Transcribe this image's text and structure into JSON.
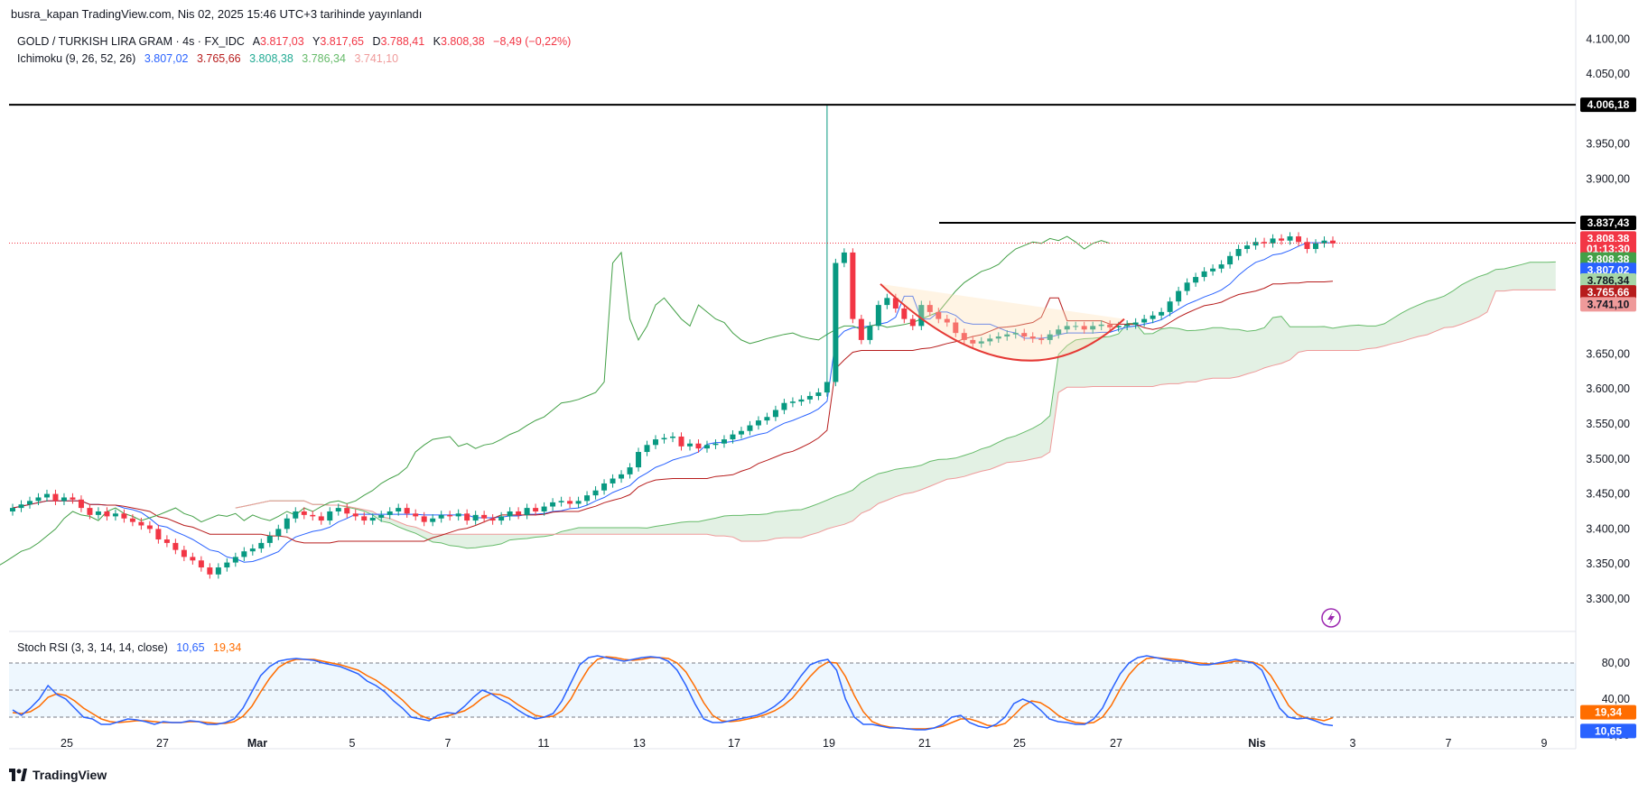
{
  "header": {
    "publish_info": "busra_kapan TradingView.com, Nis 02, 2025 15:46 UTC+3 tarihinde yayınlandı"
  },
  "legend": {
    "symbol": "GOLD / TURKISH LIRA GRAM · 4s · FX_IDC",
    "ohlc": {
      "open_label": "A",
      "open": "3.817,03",
      "high_label": "Y",
      "high": "3.817,65",
      "low_label": "D",
      "low": "3.788,41",
      "close_label": "K",
      "close": "3.808,38",
      "change": "−8,49 (−0,22%)"
    },
    "ichimoku_label": "Ichimoku (9, 26, 52, 26)",
    "ichimoku_values": [
      "3.807,02",
      "3.765,66",
      "3.808,38",
      "3.786,34",
      "3.741,10"
    ],
    "stoch_label": "Stoch RSI (3, 3, 14, 14, close)",
    "stoch_values": [
      "10,65",
      "19,34"
    ]
  },
  "price_axis": {
    "ticks": [
      "4.100,00",
      "4.050,00",
      "3.950,00",
      "3.900,00",
      "3.650,00",
      "3.600,00",
      "3.550,00",
      "3.500,00",
      "3.450,00",
      "3.400,00",
      "3.350,00",
      "3.300,00"
    ],
    "badges": [
      {
        "label": "4.006,18",
        "value": 4006.18,
        "bg": "#000000",
        "fg": "#ffffff"
      },
      {
        "label": "3.837,43",
        "value": 3837.43,
        "bg": "#000000",
        "fg": "#ffffff"
      },
      {
        "label": "3.808,38",
        "value": 3815,
        "bg": "#f23645",
        "fg": "#ffffff"
      },
      {
        "label": "01:13:30",
        "value": 3800,
        "bg": "#f23645",
        "fg": "#ffffff"
      },
      {
        "label": "3.808,38",
        "value": 3785,
        "bg": "#43a047",
        "fg": "#ffffff"
      },
      {
        "label": "3.807,02",
        "value": 3770,
        "bg": "#2962ff",
        "fg": "#ffffff"
      },
      {
        "label": "3.786,34",
        "value": 3755,
        "bg": "#a5d6a7",
        "fg": "#131722"
      },
      {
        "label": "3.765,66",
        "value": 3738,
        "bg": "#b71c1c",
        "fg": "#ffffff"
      },
      {
        "label": "3.741,10",
        "value": 3721,
        "bg": "#ef9a9a",
        "fg": "#131722"
      }
    ]
  },
  "osc_axis": {
    "ticks": [
      "80,00",
      "40,00",
      "0,00"
    ],
    "badges": [
      {
        "label": "19,34",
        "value": 19.34,
        "bg": "#ff6d00",
        "fg": "#ffffff"
      },
      {
        "label": "10,65",
        "value": 10.65,
        "bg": "#2962ff",
        "fg": "#ffffff"
      }
    ]
  },
  "time_axis": {
    "ticks": [
      "25",
      "27",
      "Mar",
      "5",
      "7",
      "11",
      "13",
      "17",
      "19",
      "21",
      "25",
      "27",
      "Nis",
      "3",
      "7",
      "9"
    ]
  },
  "footer": {
    "brand": "TradingView"
  },
  "chart_data": {
    "type": "candlestick",
    "symbol": "GOLD / TURKISH LIRA GRAM",
    "interval": "4s",
    "x_range": [
      "Feb 24, 2025",
      "Apr 9, 2025"
    ],
    "ylim": [
      3260,
      4130
    ],
    "closes": [
      3430,
      3435,
      3440,
      3445,
      3450,
      3440,
      3445,
      3442,
      3430,
      3420,
      3425,
      3418,
      3422,
      3415,
      3410,
      3405,
      3400,
      3385,
      3380,
      3370,
      3360,
      3355,
      3345,
      3335,
      3345,
      3352,
      3360,
      3368,
      3372,
      3380,
      3390,
      3400,
      3415,
      3425,
      3420,
      3418,
      3412,
      3425,
      3430,
      3422,
      3418,
      3412,
      3416,
      3420,
      3425,
      3430,
      3422,
      3418,
      3410,
      3415,
      3420,
      3418,
      3422,
      3412,
      3420,
      3415,
      3412,
      3418,
      3425,
      3420,
      3430,
      3425,
      3432,
      3438,
      3440,
      3436,
      3440,
      3448,
      3455,
      3465,
      3472,
      3478,
      3488,
      3510,
      3520,
      3528,
      3530,
      3532,
      3518,
      3522,
      3515,
      3520,
      3522,
      3528,
      3535,
      3540,
      3548,
      3555,
      3560,
      3570,
      3580,
      3582,
      3585,
      3590,
      3595,
      3610,
      3780,
      3795,
      3700,
      3670,
      3690,
      3720,
      3730,
      3715,
      3700,
      3690,
      3720,
      3710,
      3700,
      3695,
      3680,
      3670,
      3665,
      3668,
      3672,
      3675,
      3678,
      3680,
      3675,
      3672,
      3670,
      3678,
      3685,
      3690,
      3690,
      3685,
      3690,
      3692,
      3688,
      3690,
      3692,
      3695,
      3700,
      3705,
      3710,
      3725,
      3740,
      3752,
      3760,
      3768,
      3772,
      3778,
      3790,
      3800,
      3805,
      3810,
      3808,
      3815,
      3812,
      3818,
      3810,
      3800,
      3808,
      3812,
      3808
    ],
    "key_levels": [
      {
        "label": "4.006,18",
        "value": 4006.18
      },
      {
        "label": "3.837,43",
        "value": 3837.43
      }
    ],
    "ichimoku": {
      "conversion": "3.807,02",
      "base": "3.765,66",
      "lagging": "3.808,38",
      "span_a": "3.786,34",
      "span_b": "3.741,10"
    },
    "stoch_rsi": {
      "ylim": [
        0,
        100
      ],
      "levels": [
        80,
        50,
        20
      ],
      "k": [
        28,
        22,
        30,
        40,
        55,
        45,
        40,
        30,
        20,
        18,
        12,
        12,
        15,
        18,
        17,
        15,
        12,
        15,
        14,
        14,
        16,
        15,
        12,
        12,
        14,
        18,
        30,
        48,
        66,
        76,
        82,
        84,
        85,
        84,
        83,
        80,
        78,
        76,
        72,
        68,
        60,
        55,
        48,
        38,
        30,
        20,
        18,
        16,
        22,
        25,
        24,
        32,
        42,
        50,
        46,
        40,
        35,
        28,
        22,
        18,
        20,
        24,
        38,
        58,
        78,
        86,
        88,
        86,
        84,
        82,
        84,
        86,
        87,
        86,
        82,
        72,
        55,
        35,
        18,
        14,
        14,
        16,
        18,
        20,
        22,
        26,
        32,
        40,
        52,
        66,
        78,
        82,
        84,
        72,
        40,
        20,
        12,
        12,
        10,
        8,
        8,
        7,
        6,
        6,
        8,
        12,
        20,
        22,
        14,
        10,
        8,
        12,
        20,
        35,
        40,
        36,
        28,
        18,
        15,
        14,
        12,
        12,
        18,
        30,
        50,
        68,
        80,
        86,
        88,
        86,
        84,
        82,
        82,
        80,
        78,
        78,
        80,
        82,
        84,
        82,
        80,
        72,
        50,
        30,
        20,
        18,
        19,
        16,
        12,
        10.65
      ],
      "d": [
        25,
        24,
        26,
        32,
        42,
        46,
        44,
        38,
        30,
        24,
        18,
        15,
        14,
        15,
        16,
        16,
        15,
        14,
        14,
        14,
        15,
        15,
        14,
        13,
        13,
        15,
        21,
        32,
        48,
        63,
        75,
        81,
        84,
        84,
        84,
        82,
        80,
        78,
        75,
        72,
        66,
        61,
        54,
        47,
        39,
        29,
        22,
        18,
        19,
        21,
        24,
        27,
        33,
        41,
        46,
        45,
        41,
        34,
        28,
        22,
        20,
        21,
        27,
        40,
        58,
        74,
        84,
        87,
        86,
        84,
        83,
        84,
        86,
        86,
        85,
        80,
        70,
        54,
        36,
        22,
        16,
        15,
        16,
        18,
        20,
        23,
        27,
        33,
        41,
        53,
        65,
        75,
        81,
        80,
        65,
        44,
        26,
        15,
        11,
        9,
        8,
        7,
        7,
        7,
        8,
        10,
        14,
        18,
        18,
        15,
        11,
        10,
        13,
        22,
        32,
        38,
        36,
        30,
        22,
        17,
        14,
        13,
        14,
        20,
        33,
        51,
        67,
        78,
        85,
        86,
        85,
        84,
        83,
        81,
        80,
        79,
        79,
        80,
        82,
        82,
        81,
        77,
        66,
        50,
        33,
        23,
        19,
        18,
        16,
        19.34
      ]
    },
    "annotations": [
      "Horizontal resistance at 4.006,18",
      "Horizontal line at 3.837,43",
      "Cup-shaped arc (rounding bottom) drawing"
    ]
  }
}
